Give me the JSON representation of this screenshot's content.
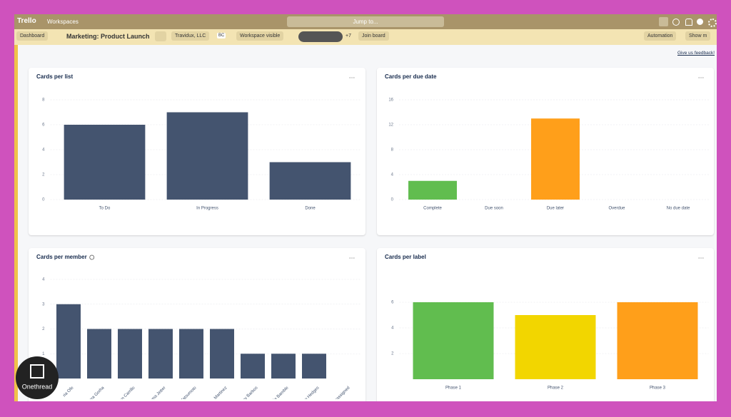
{
  "header": {
    "app": "Trello",
    "workspaces": "Workspaces",
    "search": "Jump to...",
    "view": "Dashboard",
    "board": "Marketing: Product Launch",
    "workspace": "Travidux, LLC",
    "workspace_badge": "BC",
    "visibility": "Workspace visible",
    "more_members": "+7",
    "join": "Join board",
    "automation": "Automation",
    "show_menu": "Show m",
    "feedback": "Give us feedback!"
  },
  "watermark": "Onethread",
  "chart_data": [
    {
      "type": "bar",
      "title": "Cards per list",
      "categories": [
        "To Do",
        "In Progress",
        "Done"
      ],
      "values": [
        6,
        7,
        3
      ],
      "color": "#44546f",
      "ylim": [
        0,
        8
      ],
      "yticks": [
        0,
        2,
        4,
        6,
        8
      ],
      "grid": true
    },
    {
      "type": "bar",
      "title": "Cards per due date",
      "categories": [
        "Complete",
        "Due soon",
        "Due later",
        "Overdue",
        "No due date"
      ],
      "values": [
        3,
        0,
        13,
        0,
        0
      ],
      "colors": [
        "#61bd4f",
        null,
        "#ff9f1a",
        null,
        null
      ],
      "ylim": [
        0,
        16
      ],
      "yticks": [
        0,
        4,
        8,
        12,
        16
      ],
      "grid": true
    },
    {
      "type": "bar",
      "title": "Cards per member",
      "categories": [
        "ria Ofe",
        "ara Gorha",
        "ion Carrillo",
        "ma Jetter",
        "Matsumoto",
        "Martinez",
        "ey Barbos",
        "ie Bamble",
        "e Hedges",
        "Unassigned"
      ],
      "values": [
        3,
        2,
        2,
        2,
        2,
        2,
        1,
        1,
        1,
        0
      ],
      "color": "#44546f",
      "ylim": [
        0,
        4
      ],
      "yticks": [
        1,
        2,
        3,
        4
      ],
      "grid": true
    },
    {
      "type": "bar",
      "title": "Cards per label",
      "categories": [
        "Phase 1",
        "Phase 2",
        "Phase 3"
      ],
      "values": [
        6,
        5,
        6
      ],
      "colors": [
        "#61bd4f",
        "#f2d600",
        "#ff9f1a"
      ],
      "ylim": [
        0,
        8
      ],
      "yticks": [
        2,
        4,
        6
      ],
      "grid": true
    }
  ]
}
